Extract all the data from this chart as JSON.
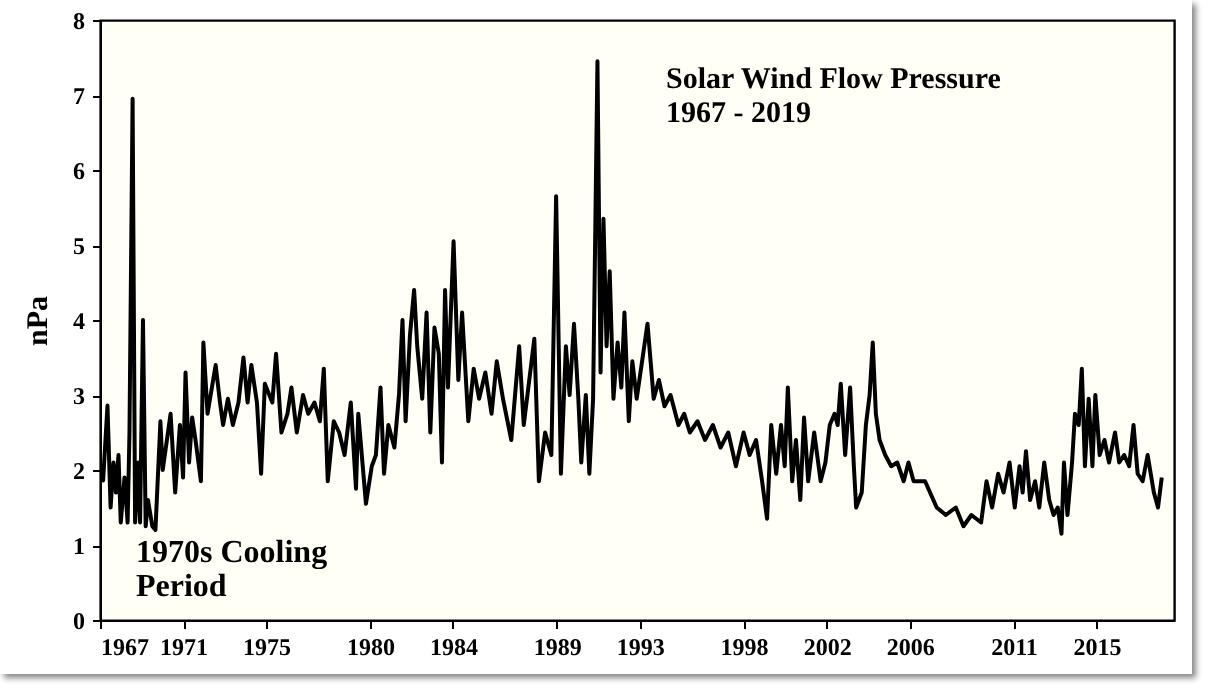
{
  "chart_data": {
    "type": "line",
    "title": "Solar Wind Flow Pressure",
    "subtitle": "1967 - 2019",
    "ylabel": "nPa",
    "annotations": [
      "1970s Cooling Period"
    ],
    "x": [
      1967.0,
      1967.15,
      1967.36,
      1967.51,
      1967.65,
      1967.77,
      1967.89,
      1968.0,
      1968.18,
      1968.33,
      1968.42,
      1968.57,
      1968.69,
      1968.84,
      1968.93,
      1969.07,
      1969.2,
      1969.31,
      1969.52,
      1969.67,
      1969.91,
      1970.02,
      1970.4,
      1970.62,
      1970.85,
      1971.0,
      1971.12,
      1971.29,
      1971.44,
      1971.6,
      1971.86,
      1971.98,
      1972.18,
      1972.57,
      1972.78,
      1972.93,
      1973.16,
      1973.4,
      1973.67,
      1973.91,
      1974.11,
      1974.29,
      1974.56,
      1974.76,
      1974.94,
      1975.3,
      1975.48,
      1975.74,
      1976.03,
      1976.22,
      1976.48,
      1976.78,
      1977.03,
      1977.33,
      1977.59,
      1977.78,
      1977.97,
      1978.26,
      1978.52,
      1978.78,
      1979.08,
      1979.33,
      1979.44,
      1979.81,
      1980.09,
      1980.29,
      1980.51,
      1980.68,
      1980.89,
      1981.18,
      1981.4,
      1981.57,
      1981.72,
      1981.93,
      1982.13,
      1982.28,
      1982.52,
      1982.73,
      1982.91,
      1983.11,
      1983.32,
      1983.47,
      1983.62,
      1983.76,
      1984.03,
      1984.26,
      1984.44,
      1984.74,
      1985.0,
      1985.26,
      1985.56,
      1985.86,
      1986.11,
      1986.41,
      1986.81,
      1987.19,
      1987.41,
      1987.92,
      1988.14,
      1988.44,
      1988.74,
      1988.97,
      1989.2,
      1989.44,
      1989.62,
      1989.83,
      1990.04,
      1990.18,
      1990.4,
      1990.57,
      1990.75,
      1990.96,
      1991.11,
      1991.25,
      1991.4,
      1991.55,
      1991.73,
      1991.93,
      1992.11,
      1992.26,
      1992.47,
      1992.64,
      1992.85,
      1993.37,
      1993.67,
      1993.92,
      1994.19,
      1994.48,
      1994.86,
      1995.14,
      1995.41,
      1995.78,
      1996.14,
      1996.52,
      1996.89,
      1997.26,
      1997.63,
      1998.0,
      1998.29,
      1998.6,
      1998.89,
      1999.13,
      1999.33,
      1999.57,
      1999.8,
      1999.98,
      2000.13,
      2000.34,
      2000.52,
      2000.73,
      2000.91,
      2001.11,
      2001.4,
      2001.71,
      2001.94,
      2002.15,
      2002.38,
      2002.53,
      2002.68,
      2002.89,
      2003.13,
      2003.31,
      2003.42,
      2003.69,
      2003.89,
      2004.07,
      2004.22,
      2004.37,
      2004.55,
      2004.82,
      2005.11,
      2005.4,
      2005.71,
      2005.94,
      2006.19,
      2006.74,
      2007.3,
      2007.74,
      2008.22,
      2008.59,
      2008.97,
      2009.44,
      2009.7,
      2009.97,
      2010.26,
      2010.52,
      2010.81,
      2011.06,
      2011.29,
      2011.44,
      2011.6,
      2011.8,
      2012.04,
      2012.24,
      2012.48,
      2012.72,
      2012.93,
      2013.13,
      2013.31,
      2013.43,
      2013.6,
      2013.82,
      2013.96,
      2014.14,
      2014.29,
      2014.44,
      2014.62,
      2014.8,
      2014.94,
      2015.15,
      2015.38,
      2015.6,
      2015.89,
      2016.09,
      2016.33,
      2016.57,
      2016.78,
      2016.98,
      2017.22,
      2017.46,
      2017.76,
      2017.96,
      2018.14
    ],
    "series": [
      {
        "color": "#000000",
        "values": [
          2.0,
          1.86,
          2.86,
          1.5,
          2.1,
          1.7,
          2.2,
          1.3,
          1.9,
          1.3,
          2.5,
          6.95,
          1.3,
          2.1,
          1.3,
          4.0,
          1.25,
          1.6,
          1.25,
          1.2,
          2.65,
          2.0,
          2.75,
          1.7,
          2.6,
          1.9,
          3.3,
          2.1,
          2.7,
          2.4,
          1.85,
          3.7,
          2.75,
          3.4,
          2.9,
          2.6,
          2.95,
          2.6,
          2.9,
          3.5,
          2.9,
          3.4,
          2.9,
          1.95,
          3.15,
          2.9,
          3.55,
          2.5,
          2.75,
          3.1,
          2.5,
          3.0,
          2.75,
          2.9,
          2.65,
          3.35,
          1.85,
          2.65,
          2.5,
          2.2,
          2.9,
          1.75,
          2.75,
          1.55,
          2.05,
          2.2,
          3.1,
          1.95,
          2.6,
          2.3,
          3.0,
          4.0,
          2.65,
          3.8,
          4.4,
          3.65,
          2.95,
          4.1,
          2.5,
          3.9,
          3.55,
          2.1,
          4.4,
          3.1,
          5.05,
          3.2,
          4.1,
          2.65,
          3.35,
          2.95,
          3.3,
          2.75,
          3.45,
          2.95,
          2.4,
          3.65,
          2.6,
          3.75,
          1.85,
          2.5,
          2.2,
          5.65,
          1.95,
          3.65,
          3.0,
          3.95,
          2.95,
          2.1,
          3.0,
          1.95,
          2.95,
          7.45,
          3.3,
          5.35,
          3.65,
          4.65,
          2.95,
          3.7,
          3.1,
          4.1,
          2.65,
          3.45,
          2.95,
          3.95,
          2.95,
          3.2,
          2.85,
          3.0,
          2.6,
          2.75,
          2.5,
          2.65,
          2.4,
          2.6,
          2.3,
          2.5,
          2.05,
          2.5,
          2.2,
          2.4,
          1.85,
          1.35,
          2.6,
          1.95,
          2.6,
          2.05,
          3.1,
          1.85,
          2.4,
          1.6,
          2.7,
          1.85,
          2.5,
          1.85,
          2.1,
          2.6,
          2.75,
          2.6,
          3.15,
          2.2,
          3.1,
          2.05,
          1.5,
          1.7,
          2.6,
          3.0,
          3.7,
          2.75,
          2.4,
          2.2,
          2.05,
          2.1,
          1.85,
          2.1,
          1.85,
          1.85,
          1.5,
          1.4,
          1.5,
          1.25,
          1.4,
          1.3,
          1.85,
          1.5,
          1.95,
          1.7,
          2.1,
          1.5,
          2.05,
          1.7,
          2.25,
          1.6,
          1.85,
          1.5,
          2.1,
          1.6,
          1.4,
          1.5,
          1.15,
          2.1,
          1.4,
          2.1,
          2.75,
          2.6,
          3.35,
          2.05,
          2.95,
          2.05,
          3.0,
          2.2,
          2.4,
          2.1,
          2.5,
          2.1,
          2.2,
          2.05,
          2.6,
          1.95,
          1.85,
          2.2,
          1.7,
          1.5,
          1.9
        ]
      }
    ],
    "xlim": [
      1967,
      2018.73
    ],
    "xticks": [
      1967,
      1971,
      1975,
      1980,
      1984,
      1989,
      1993,
      1998,
      2002,
      2006,
      2011,
      2015
    ],
    "ylim": [
      0,
      8
    ],
    "yticks": [
      0,
      1,
      2,
      3,
      4,
      5,
      6,
      7,
      8
    ]
  }
}
